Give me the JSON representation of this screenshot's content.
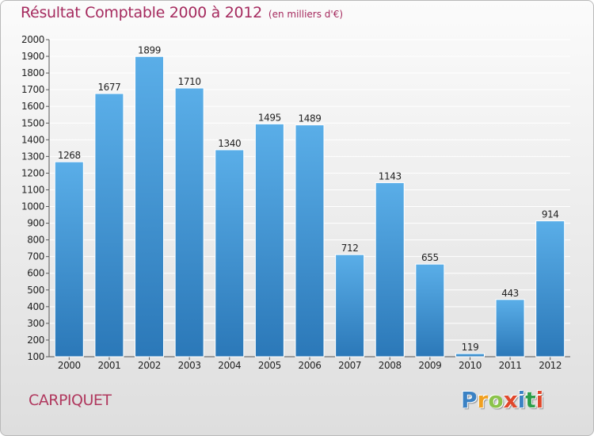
{
  "header": {
    "title": "Résultat Comptable 2000 à 2012",
    "unit": "(en milliers d'€)"
  },
  "footer": {
    "commune": "CARPIQUET"
  },
  "logo": {
    "letters": [
      "P",
      "r",
      "o",
      "x",
      "i",
      "t",
      "i"
    ],
    "colors": [
      "#3b82c4",
      "#f0a020",
      "#8bc34a",
      "#e0482c",
      "#3b82c4",
      "#2e9e4a",
      "#e0482c"
    ]
  },
  "colors": {
    "bar_light": "#5aaee8",
    "bar_dark": "#2b78b8",
    "grid": "#ffffff",
    "text": "#222222"
  },
  "chart_data": {
    "type": "bar",
    "title": "Résultat Comptable 2000 à 2012",
    "subtitle": "(en milliers d'€)",
    "xlabel": "",
    "ylabel": "",
    "categories": [
      "2000",
      "2001",
      "2002",
      "2003",
      "2004",
      "2005",
      "2006",
      "2007",
      "2008",
      "2009",
      "2010",
      "2011",
      "2012"
    ],
    "values": [
      1268,
      1677,
      1899,
      1710,
      1340,
      1495,
      1489,
      712,
      1143,
      655,
      119,
      443,
      914
    ],
    "ylim": [
      100,
      2000
    ],
    "yticks": [
      100,
      200,
      300,
      400,
      500,
      600,
      700,
      800,
      900,
      1000,
      1100,
      1200,
      1300,
      1400,
      1500,
      1600,
      1700,
      1800,
      1900,
      2000
    ],
    "grid": true,
    "data_labels": true
  }
}
